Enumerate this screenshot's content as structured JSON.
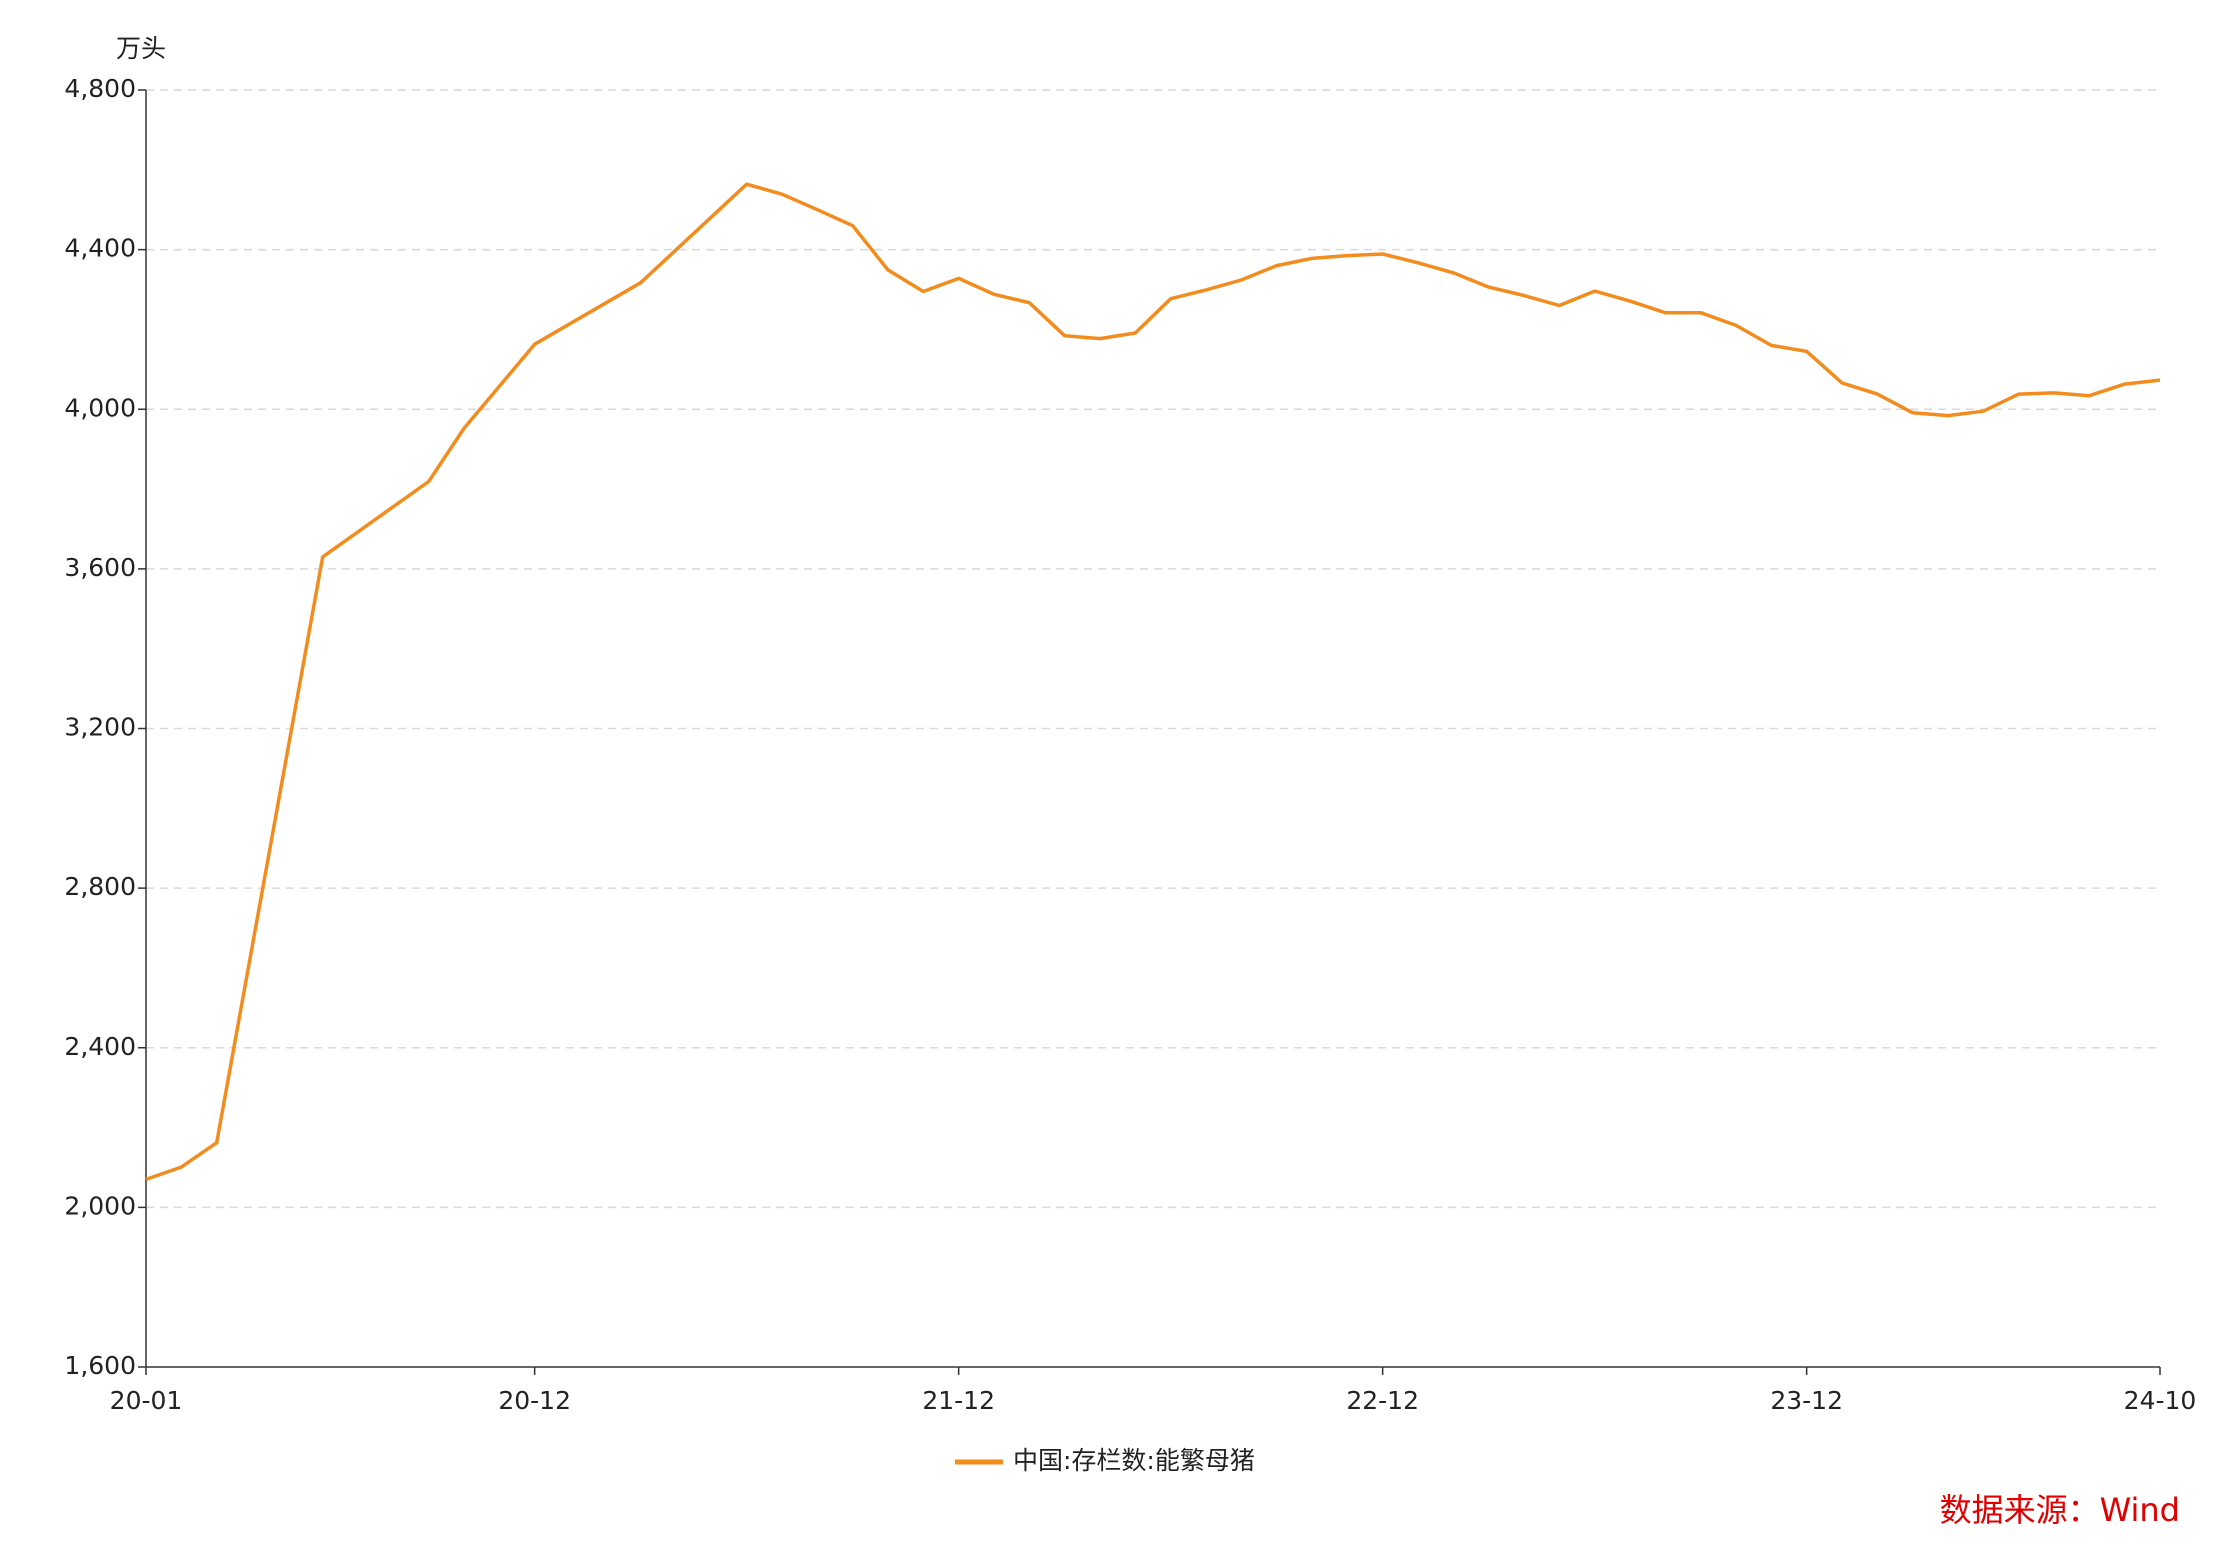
{
  "chart_data": {
    "type": "line",
    "y_axis_label": "万头",
    "source": "数据来源：Wind",
    "x": [
      "20-01",
      "20-02",
      "20-03",
      "20-06",
      "20-09",
      "20-10",
      "20-12",
      "21-03",
      "21-06",
      "21-07",
      "21-08",
      "21-09",
      "21-10",
      "21-11",
      "21-12",
      "22-01",
      "22-02",
      "22-03",
      "22-04",
      "22-05",
      "22-06",
      "22-07",
      "22-08",
      "22-09",
      "22-10",
      "22-11",
      "22-12",
      "23-01",
      "23-02",
      "23-03",
      "23-04",
      "23-05",
      "23-06",
      "23-07",
      "23-08",
      "23-09",
      "23-10",
      "23-11",
      "23-12",
      "24-01",
      "24-02",
      "24-03",
      "24-04",
      "24-05",
      "24-06",
      "24-07",
      "24-08",
      "24-09",
      "24-10"
    ],
    "series": [
      {
        "name": "中国:存栏数:能繁母猪",
        "color": "#f28c1e",
        "values": [
          2070,
          2101,
          2162,
          3630,
          3819,
          3952,
          4163,
          4317,
          4564,
          4539,
          4500,
          4460,
          4349,
          4295,
          4328,
          4288,
          4267,
          4184,
          4177,
          4191,
          4277,
          4299,
          4324,
          4360,
          4378,
          4385,
          4389,
          4367,
          4342,
          4306,
          4285,
          4260,
          4296,
          4271,
          4242,
          4242,
          4210,
          4160,
          4145,
          4066,
          4038,
          3991,
          3984,
          3995,
          4038,
          4041,
          4034,
          4063,
          4073
        ]
      }
    ],
    "xticks": [
      "20-01",
      "20-12",
      "21-12",
      "22-12",
      "23-12",
      "24-10"
    ],
    "ylim": [
      1600,
      4800
    ],
    "yticks": [
      {
        "value": 1600,
        "label": "1,600"
      },
      {
        "value": 2000,
        "label": "2,000"
      },
      {
        "value": 2400,
        "label": "2,400"
      },
      {
        "value": 2800,
        "label": "2,800"
      },
      {
        "value": 3200,
        "label": "3,200"
      },
      {
        "value": 3600,
        "label": "3,600"
      },
      {
        "value": 4000,
        "label": "4,000"
      },
      {
        "value": 4400,
        "label": "4,400"
      },
      {
        "value": 4800,
        "label": "4,800"
      }
    ],
    "grid": true
  }
}
